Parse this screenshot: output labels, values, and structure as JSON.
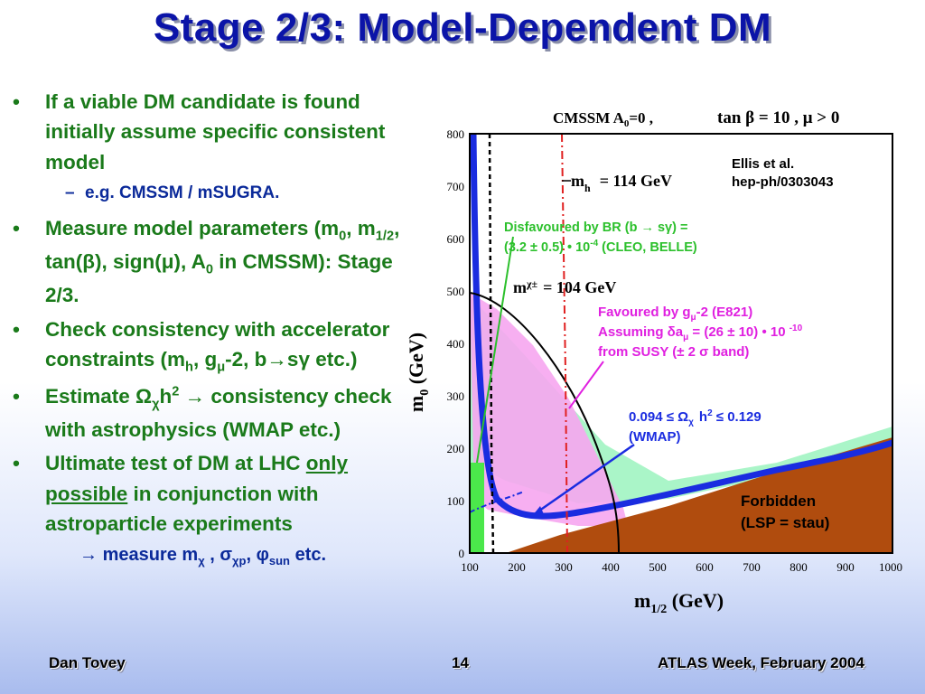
{
  "slide": {
    "title": "Stage 2/3: Model-Dependent DM",
    "footer": {
      "author": "Dan Tovey",
      "page": "14",
      "event": "ATLAS Week, February 2004"
    }
  },
  "bullets": {
    "b1": "If a viable DM candidate is found initially assume specific consistent model",
    "b1_sub": "e.g. CMSSM / mSUGRA.",
    "b2_prefix": "Measure model parameters (m",
    "b2_rest": "): Stage 2/3.",
    "b3_prefix": "Check consistency with accelerator constraints (m",
    "b3_rest": " etc.)",
    "b4_prefix": "Estimate ",
    "b4_rest": " consistency check with astrophysics (WMAP etc.)",
    "b5_part1": "Ultimate test of DM at LHC",
    "b5_under": "only possible",
    "b5_part2": " in conjunction with astroparticle experiments",
    "b5_sub_prefix": "measure m",
    "b5_sub_suffix": " etc."
  },
  "plot": {
    "header": "CMSSM   A",
    "header2": "=0 ,",
    "header3": "tan β = 10 ,  μ > 0",
    "reference": [
      "Ellis et al.",
      "hep-ph/0303043"
    ],
    "ylabel": "m",
    "xlabel": "m",
    "mh_label": "m",
    "mh_value": "= 114 GeV",
    "mchi_label": "m",
    "mchi_value": "= 104 GeV",
    "disfavoured": [
      "Disfavoured  by  BR (b → sγ)  =",
      "(3.2 ± 0.5) • 10",
      "  (CLEO, BELLE)"
    ],
    "favoured": [
      "Favoured  by  g",
      "-2  (E821)",
      "Assuming δa",
      " = (26 ± 10) • 10 ",
      "from SUSY (± 2 σ band)"
    ],
    "wmap": [
      "0.094 ≤ Ω",
      "h",
      " ≤ 0.129",
      "(WMAP)"
    ],
    "forbidden": [
      "Forbidden",
      "(LSP = stau)"
    ],
    "x_ticks": [
      "100",
      "200",
      "300",
      "400",
      "500",
      "600",
      "700",
      "800",
      "900",
      "1000"
    ],
    "y_ticks": [
      "0",
      "100",
      "200",
      "300",
      "400",
      "500",
      "600",
      "700",
      "800"
    ],
    "colors": {
      "forbidden": "#b04c0e",
      "gminus2": "#f6a6f0",
      "wmap_band": "#aaf5c8",
      "dark_matter_band": "#1a2ce0",
      "bsgamma": "#4be84b",
      "mh_line": "#e02020",
      "title": "#0b14a8",
      "bullet_text": "#1a7a1a"
    }
  }
}
